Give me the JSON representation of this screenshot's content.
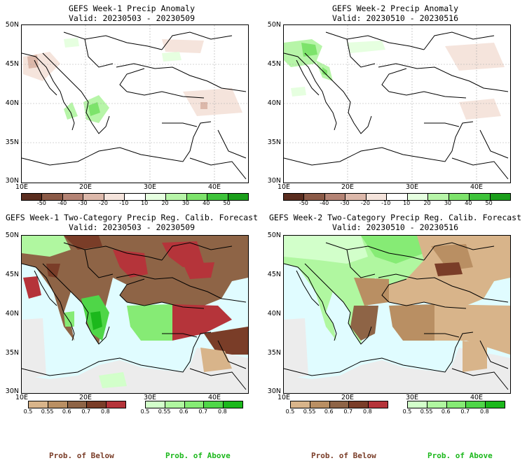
{
  "panels": [
    {
      "title": "GEFS Week-1 Precip Anomaly",
      "valid": "Valid: 20230503 - 20230509"
    },
    {
      "title": "GEFS Week-2 Precip Anomaly",
      "valid": "Valid: 20230510 - 20230516"
    },
    {
      "title": "GEFS Week-1 Two-Category Precip Reg. Calib. Forecast",
      "valid": "Valid: 20230503 - 20230509"
    },
    {
      "title": "GEFS Week-2 Two-Category Precip Reg. Calib. Forecast",
      "valid": "Valid: 20230510 - 20230516"
    }
  ],
  "lat_labels": [
    "50N",
    "45N",
    "40N",
    "35N",
    "30N"
  ],
  "lon_labels": [
    "10E",
    "20E",
    "30E",
    "40E"
  ],
  "anomaly_scale": {
    "labels": [
      "-50",
      "-40",
      "-30",
      "-20",
      "-10",
      "10",
      "20",
      "30",
      "40",
      "50"
    ],
    "colors": [
      "#5a2d1f",
      "#8b5a47",
      "#b48374",
      "#dcb8aa",
      "#f5e4dc",
      "#ffffff",
      "#e6ffe0",
      "#b7f5a8",
      "#7de36b",
      "#3ec33a",
      "#1a9e1a"
    ]
  },
  "prob_scale": {
    "below_labels": [
      "0.5",
      "0.55",
      "0.6",
      "0.7",
      "0.8"
    ],
    "below_colors": [
      "#d8b48a",
      "#b98f63",
      "#8e6446",
      "#7a3d28",
      "#b5343a"
    ],
    "above_labels": [
      "0.5",
      "0.55",
      "0.6",
      "0.7",
      "0.8"
    ],
    "above_colors": [
      "#d2ffca",
      "#b0f7a0",
      "#86eb75",
      "#4fd648",
      "#1cb81c"
    ],
    "below_title": "Prob. of Below",
    "above_title": "Prob. of Above",
    "below_title_color": "#7a3d28",
    "above_title_color": "#1cb81c"
  },
  "colors": {
    "sea": "#e0fcff",
    "land_blank": "#ececec",
    "border": "#000000"
  }
}
